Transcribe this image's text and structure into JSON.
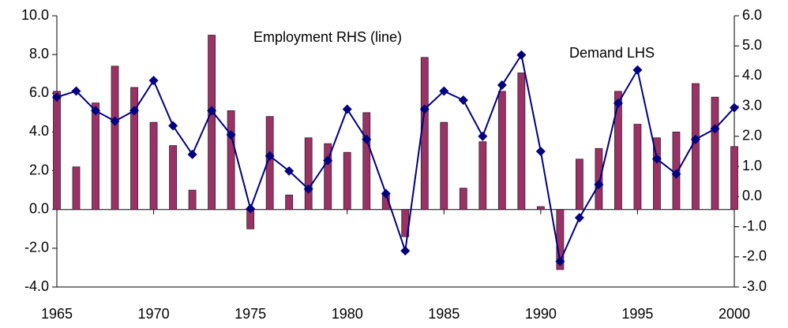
{
  "chart_data": {
    "type": "bar-line",
    "x": [
      1965,
      1966,
      1967,
      1968,
      1969,
      1970,
      1971,
      1972,
      1973,
      1974,
      1975,
      1976,
      1977,
      1978,
      1979,
      1980,
      1981,
      1982,
      1983,
      1984,
      1985,
      1986,
      1987,
      1988,
      1989,
      1990,
      1991,
      1992,
      1993,
      1994,
      1995,
      1996,
      1997,
      1998,
      1999,
      2000
    ],
    "xlim": [
      1965,
      2000
    ],
    "xticks": [
      1965,
      1970,
      1975,
      1980,
      1985,
      1990,
      1995,
      2000
    ],
    "ylim": [
      -4,
      10
    ],
    "yticks": [
      {
        "value": -4,
        "label": "-4.0"
      },
      {
        "value": -2,
        "label": "-2.0"
      },
      {
        "value": 0,
        "label": "0.0"
      },
      {
        "value": 2,
        "label": "2.0"
      },
      {
        "value": 4,
        "label": "4.0"
      },
      {
        "value": 6,
        "label": "6.0"
      },
      {
        "value": 8,
        "label": "8.0"
      },
      {
        "value": 10,
        "label": "10.0"
      }
    ],
    "y2lim": [
      -3,
      6
    ],
    "y2ticks": [
      {
        "value": -3,
        "label": "-3.0"
      },
      {
        "value": -2,
        "label": "-2.0"
      },
      {
        "value": -1,
        "label": "-1.0"
      },
      {
        "value": 0,
        "label": "0.0"
      },
      {
        "value": 1,
        "label": "1.0"
      },
      {
        "value": 2,
        "label": "2.0"
      },
      {
        "value": 3,
        "label": "3.0"
      },
      {
        "value": 4,
        "label": "4.0"
      },
      {
        "value": 5,
        "label": "5.0"
      },
      {
        "value": 6,
        "label": "6.0"
      }
    ],
    "series": [
      {
        "name": "Demand LHS",
        "type": "bar",
        "color": "#993366",
        "values": [
          6.1,
          2.2,
          5.5,
          7.4,
          6.3,
          4.5,
          3.3,
          1.0,
          9.0,
          5.1,
          -1.0,
          4.8,
          0.75,
          3.7,
          3.4,
          2.95,
          5.0,
          0.8,
          -1.4,
          7.85,
          4.5,
          1.1,
          3.5,
          6.1,
          7.05,
          0.15,
          -3.1,
          2.6,
          3.15,
          6.1,
          4.4,
          3.7,
          4.0,
          6.5,
          5.8,
          3.25
        ]
      },
      {
        "name": "Employment RHS (line)",
        "type": "line",
        "axis": "y2",
        "color": "#000080",
        "values": [
          3.3,
          3.5,
          2.85,
          2.5,
          2.85,
          3.85,
          2.35,
          1.4,
          2.85,
          2.05,
          -0.4,
          1.35,
          0.85,
          0.25,
          1.2,
          2.9,
          1.9,
          0.1,
          -1.8,
          2.9,
          3.5,
          3.2,
          2.0,
          3.7,
          4.7,
          1.5,
          -2.15,
          -0.7,
          0.4,
          3.1,
          4.2,
          1.25,
          0.75,
          1.9,
          2.25,
          2.95
        ]
      }
    ]
  }
}
